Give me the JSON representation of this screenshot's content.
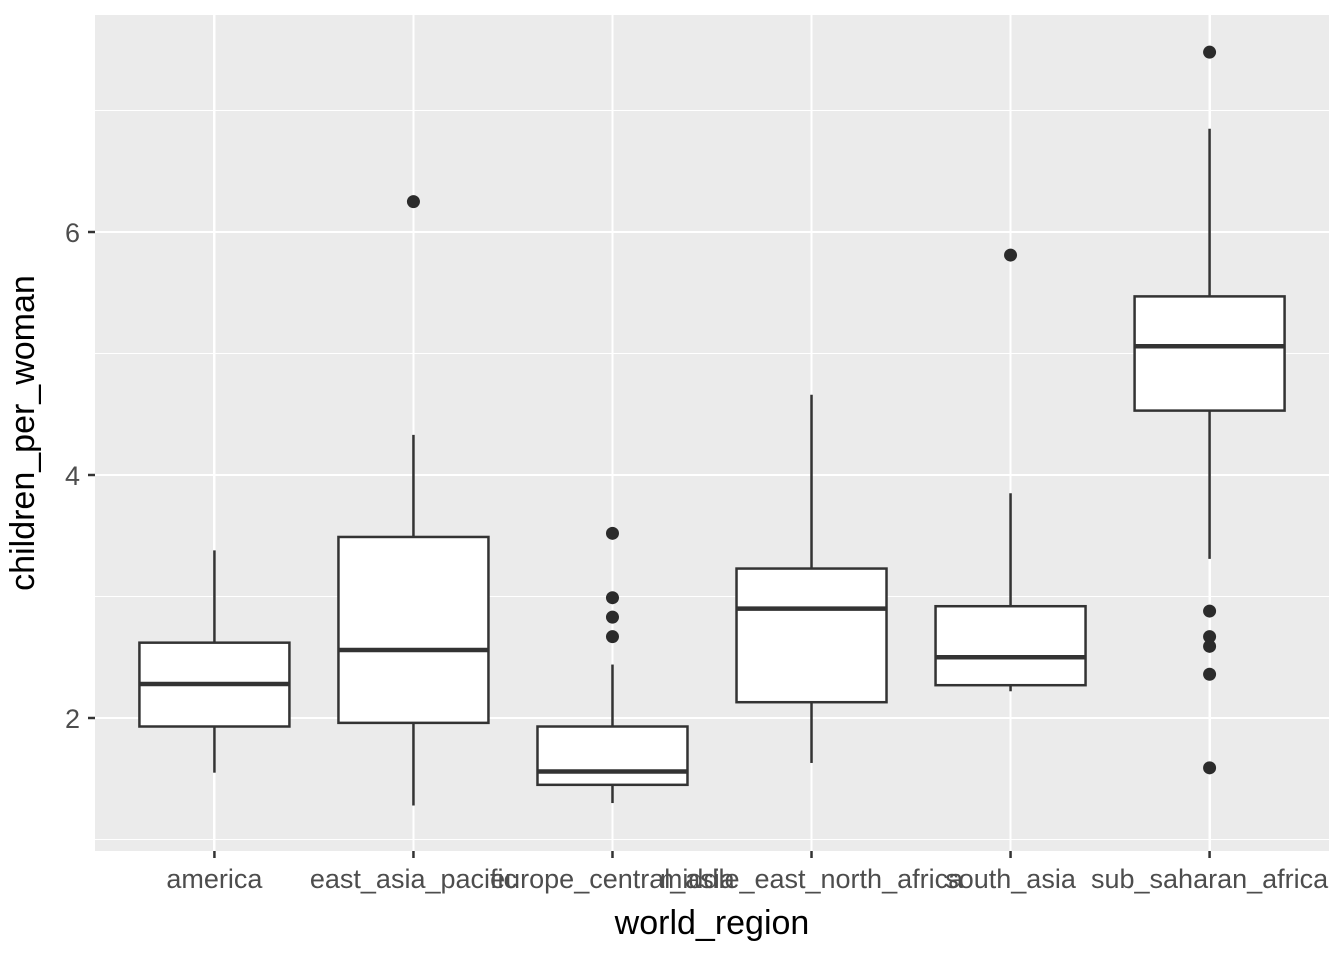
{
  "chart_data": {
    "type": "boxplot",
    "title": "",
    "xlabel": "world_region",
    "ylabel": "children_per_woman",
    "categories": [
      "america",
      "east_asia_pacific",
      "europe_central_asia",
      "middle_east_north_africa",
      "south_asia",
      "sub_saharan_africa"
    ],
    "series": [
      {
        "label": "america",
        "whisker_low": 1.55,
        "q1": 1.93,
        "median": 2.28,
        "q3": 2.62,
        "whisker_high": 3.38,
        "outliers": []
      },
      {
        "label": "east_asia_pacific",
        "whisker_low": 1.28,
        "q1": 1.96,
        "median": 2.56,
        "q3": 3.49,
        "whisker_high": 4.33,
        "outliers": [
          6.25
        ]
      },
      {
        "label": "europe_central_asia",
        "whisker_low": 1.3,
        "q1": 1.45,
        "median": 1.56,
        "q3": 1.93,
        "whisker_high": 2.44,
        "outliers": [
          3.52,
          2.99,
          2.83,
          2.67
        ]
      },
      {
        "label": "middle_east_north_africa",
        "whisker_low": 1.63,
        "q1": 2.13,
        "median": 2.9,
        "q3": 3.23,
        "whisker_high": 4.66,
        "outliers": []
      },
      {
        "label": "south_asia",
        "whisker_low": 2.22,
        "q1": 2.27,
        "median": 2.5,
        "q3": 2.92,
        "whisker_high": 3.85,
        "outliers": [
          5.81
        ]
      },
      {
        "label": "sub_saharan_africa",
        "whisker_low": 3.31,
        "q1": 4.53,
        "median": 5.06,
        "q3": 5.47,
        "whisker_high": 6.85,
        "outliers": [
          7.48,
          2.88,
          2.67,
          2.59,
          2.36,
          1.59
        ]
      }
    ],
    "y_major_ticks": [
      2,
      4,
      6
    ],
    "y_minor_ticks": [
      1,
      3,
      5,
      7
    ],
    "ylim": [
      0.9,
      7.79
    ],
    "grid": true,
    "legend": "none",
    "colors": {
      "panel_background": "#EBEBEB",
      "gridline": "#FFFFFF",
      "box_stroke": "#333333",
      "box_fill": "#FFFFFF",
      "outlier": "#2B2B2B",
      "tick_mark": "#333333",
      "axis_text": "#4D4D4D",
      "axis_title": "#000000",
      "figure_background": "#FFFFFF"
    }
  }
}
